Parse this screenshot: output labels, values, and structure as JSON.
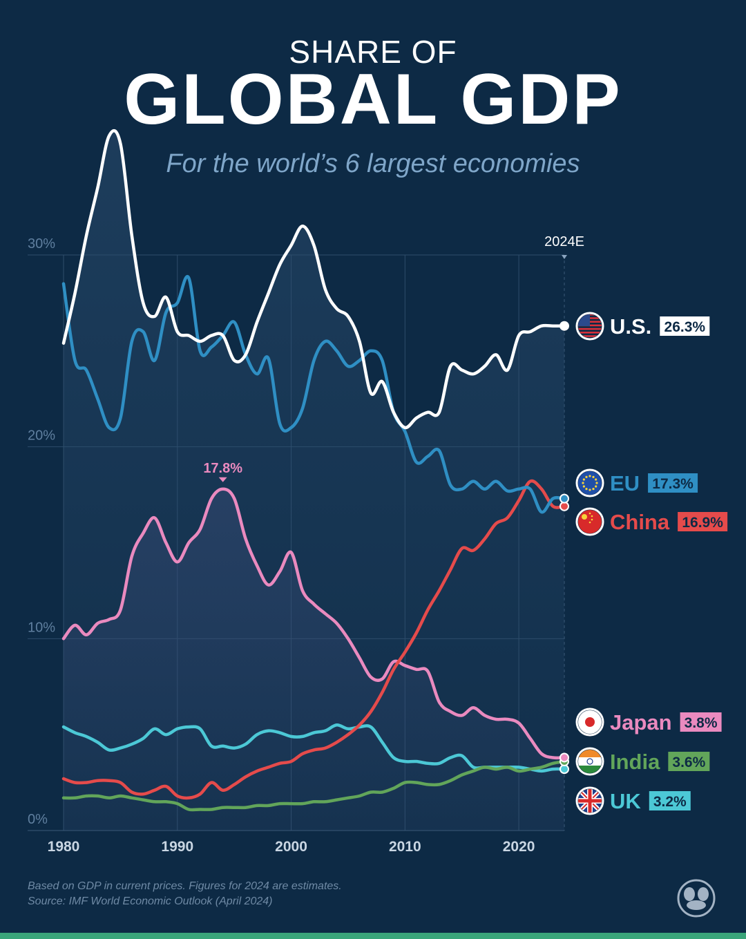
{
  "header": {
    "kicker": "SHARE OF",
    "title": "GLOBAL GDP",
    "subtitle": "For the world’s 6 largest economies"
  },
  "footnote": {
    "line1": "Based on GDP in current prices. Figures for 2024 are estimates.",
    "line2": "Source: IMF World Economic Outlook (April 2024)"
  },
  "chart_data": {
    "type": "line",
    "title": "GLOBAL GDP",
    "subtitle": "For the world’s 6 largest economies",
    "xlabel": "",
    "ylabel": "",
    "xlim": [
      1980,
      2024
    ],
    "ylim": [
      0,
      30
    ],
    "x_ticks": [
      1980,
      1990,
      2000,
      2010,
      2020
    ],
    "x_tick_labels": [
      "1980",
      "1990",
      "2000",
      "2010",
      "2020"
    ],
    "y_ticks": [
      0,
      10,
      20,
      30
    ],
    "y_tick_labels": [
      "0%",
      "10%",
      "20%",
      "30%"
    ],
    "end_marker_label": "2024E",
    "grid": true,
    "legend": "right",
    "annotation": {
      "series": "Japan",
      "x": 1994,
      "y": 17.8,
      "text": "17.8%"
    },
    "series": [
      {
        "name": "U.S.",
        "end_label": "26.3%",
        "color": "#ffffff",
        "flag": "us",
        "x": [
          1980,
          1981,
          1982,
          1983,
          1984,
          1985,
          1986,
          1987,
          1988,
          1989,
          1990,
          1991,
          1992,
          1993,
          1994,
          1995,
          1996,
          1997,
          1998,
          1999,
          2000,
          2001,
          2002,
          2003,
          2004,
          2005,
          2006,
          2007,
          2008,
          2009,
          2010,
          2011,
          2012,
          2013,
          2014,
          2015,
          2016,
          2017,
          2018,
          2019,
          2020,
          2021,
          2022,
          2023,
          2024
        ],
        "values": [
          25.4,
          28.0,
          31.0,
          33.5,
          36.2,
          35.8,
          31.0,
          27.5,
          26.8,
          27.8,
          26.0,
          25.8,
          25.5,
          25.8,
          25.8,
          24.5,
          24.8,
          26.5,
          28.0,
          29.5,
          30.5,
          31.5,
          30.5,
          28.2,
          27.2,
          26.8,
          25.5,
          22.8,
          23.4,
          21.8,
          21.0,
          21.5,
          21.8,
          21.8,
          24.2,
          24.0,
          23.8,
          24.2,
          24.8,
          24.0,
          25.8,
          26.0,
          26.3,
          26.3,
          26.3
        ]
      },
      {
        "name": "EU",
        "end_label": "17.3%",
        "color": "#2f8fc4",
        "flag": "eu",
        "x": [
          1980,
          1981,
          1982,
          1983,
          1984,
          1985,
          1986,
          1987,
          1988,
          1989,
          1990,
          1991,
          1992,
          1993,
          1994,
          1995,
          1996,
          1997,
          1998,
          1999,
          2000,
          2001,
          2002,
          2003,
          2004,
          2005,
          2006,
          2007,
          2008,
          2009,
          2010,
          2011,
          2012,
          2013,
          2014,
          2015,
          2016,
          2017,
          2018,
          2019,
          2020,
          2021,
          2022,
          2023,
          2024
        ],
        "values": [
          28.5,
          24.5,
          24.0,
          22.5,
          21.0,
          21.5,
          25.5,
          26.0,
          24.5,
          27.0,
          27.5,
          28.8,
          25.0,
          25.2,
          25.8,
          26.5,
          24.8,
          23.8,
          24.6,
          21.2,
          21.0,
          22.0,
          24.5,
          25.5,
          25.0,
          24.2,
          24.5,
          25.0,
          24.5,
          21.8,
          20.8,
          19.2,
          19.5,
          19.8,
          18.0,
          17.8,
          18.2,
          17.8,
          18.2,
          17.7,
          17.8,
          17.8,
          16.6,
          17.3,
          17.3
        ]
      },
      {
        "name": "China",
        "end_label": "16.9%",
        "color": "#e54b4b",
        "flag": "cn",
        "x": [
          1980,
          1981,
          1982,
          1983,
          1984,
          1985,
          1986,
          1987,
          1988,
          1989,
          1990,
          1991,
          1992,
          1993,
          1994,
          1995,
          1996,
          1997,
          1998,
          1999,
          2000,
          2001,
          2002,
          2003,
          2004,
          2005,
          2006,
          2007,
          2008,
          2009,
          2010,
          2011,
          2012,
          2013,
          2014,
          2015,
          2016,
          2017,
          2018,
          2019,
          2020,
          2021,
          2022,
          2023,
          2024
        ],
        "values": [
          2.7,
          2.5,
          2.5,
          2.6,
          2.6,
          2.5,
          2.0,
          1.9,
          2.1,
          2.3,
          1.8,
          1.7,
          1.9,
          2.5,
          2.1,
          2.4,
          2.8,
          3.1,
          3.3,
          3.5,
          3.6,
          4.0,
          4.2,
          4.3,
          4.6,
          5.0,
          5.5,
          6.2,
          7.2,
          8.4,
          9.3,
          10.3,
          11.5,
          12.5,
          13.6,
          14.7,
          14.6,
          15.2,
          16.0,
          16.3,
          17.2,
          18.2,
          17.8,
          16.9,
          16.9
        ]
      },
      {
        "name": "Japan",
        "end_label": "3.8%",
        "color": "#ea8abf",
        "flag": "jp",
        "x": [
          1980,
          1981,
          1982,
          1983,
          1984,
          1985,
          1986,
          1987,
          1988,
          1989,
          1990,
          1991,
          1992,
          1993,
          1994,
          1995,
          1996,
          1997,
          1998,
          1999,
          2000,
          2001,
          2002,
          2003,
          2004,
          2005,
          2006,
          2007,
          2008,
          2009,
          2010,
          2011,
          2012,
          2013,
          2014,
          2015,
          2016,
          2017,
          2018,
          2019,
          2020,
          2021,
          2022,
          2023,
          2024
        ],
        "values": [
          10.0,
          10.7,
          10.2,
          10.8,
          11.0,
          11.5,
          14.3,
          15.5,
          16.3,
          15.0,
          14.0,
          15.0,
          15.7,
          17.3,
          17.8,
          17.3,
          15.2,
          13.8,
          12.8,
          13.5,
          14.5,
          12.5,
          11.8,
          11.3,
          10.8,
          10.0,
          9.0,
          8.0,
          7.9,
          8.8,
          8.6,
          8.4,
          8.3,
          6.7,
          6.2,
          6.0,
          6.4,
          6.0,
          5.8,
          5.8,
          5.6,
          4.8,
          4.0,
          3.8,
          3.8
        ]
      },
      {
        "name": "India",
        "end_label": "3.6%",
        "color": "#62a55a",
        "flag": "in",
        "x": [
          1980,
          1981,
          1982,
          1983,
          1984,
          1985,
          1986,
          1987,
          1988,
          1989,
          1990,
          1991,
          1992,
          1993,
          1994,
          1995,
          1996,
          1997,
          1998,
          1999,
          2000,
          2001,
          2002,
          2003,
          2004,
          2005,
          2006,
          2007,
          2008,
          2009,
          2010,
          2011,
          2012,
          2013,
          2014,
          2015,
          2016,
          2017,
          2018,
          2019,
          2020,
          2021,
          2022,
          2023,
          2024
        ],
        "values": [
          1.7,
          1.7,
          1.8,
          1.8,
          1.7,
          1.8,
          1.7,
          1.6,
          1.5,
          1.5,
          1.4,
          1.1,
          1.1,
          1.1,
          1.2,
          1.2,
          1.2,
          1.3,
          1.3,
          1.4,
          1.4,
          1.4,
          1.5,
          1.5,
          1.6,
          1.7,
          1.8,
          2.0,
          2.0,
          2.2,
          2.5,
          2.5,
          2.4,
          2.4,
          2.6,
          2.9,
          3.1,
          3.3,
          3.2,
          3.3,
          3.1,
          3.2,
          3.3,
          3.5,
          3.6
        ]
      },
      {
        "name": "UK",
        "end_label": "3.2%",
        "color": "#4cc8d6",
        "flag": "uk",
        "x": [
          1980,
          1981,
          1982,
          1983,
          1984,
          1985,
          1986,
          1987,
          1988,
          1989,
          1990,
          1991,
          1992,
          1993,
          1994,
          1995,
          1996,
          1997,
          1998,
          1999,
          2000,
          2001,
          2002,
          2003,
          2004,
          2005,
          2006,
          2007,
          2008,
          2009,
          2010,
          2011,
          2012,
          2013,
          2014,
          2015,
          2016,
          2017,
          2018,
          2019,
          2020,
          2021,
          2022,
          2023,
          2024
        ],
        "values": [
          5.4,
          5.1,
          4.9,
          4.6,
          4.2,
          4.3,
          4.5,
          4.8,
          5.3,
          5.0,
          5.3,
          5.4,
          5.3,
          4.4,
          4.4,
          4.3,
          4.5,
          5.0,
          5.2,
          5.1,
          4.9,
          4.9,
          5.1,
          5.2,
          5.5,
          5.3,
          5.4,
          5.4,
          4.6,
          3.8,
          3.6,
          3.6,
          3.5,
          3.5,
          3.8,
          3.9,
          3.3,
          3.3,
          3.3,
          3.3,
          3.3,
          3.2,
          3.1,
          3.2,
          3.2
        ]
      }
    ]
  }
}
